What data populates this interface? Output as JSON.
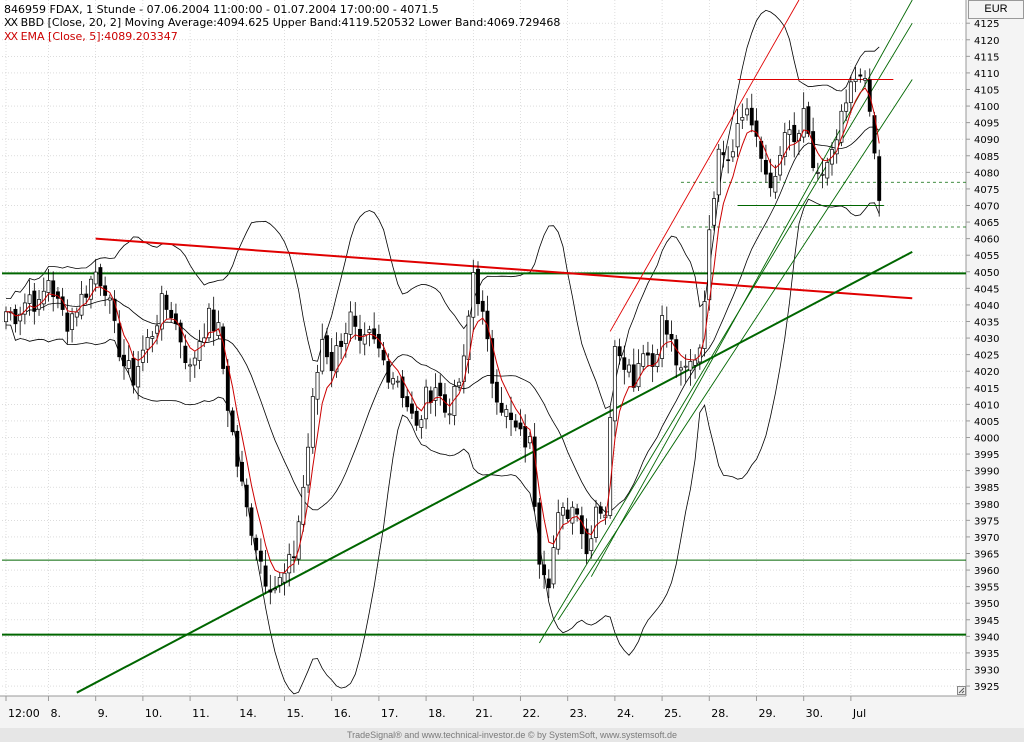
{
  "header": {
    "line1": "846959  FDAX, 1 Stunde - 07.06.2004 11:00:00 - 01.07.2004 17:00:00 - 4071.5",
    "line2": "BBD [Close, 20, 2] Moving Average:4094.625 Upper Band:4119.520532 Lower Band:4069.729468",
    "line3": "EMA [Close, 5]:4089.203347",
    "marker": "XX"
  },
  "currency": "EUR",
  "footer": "TradeSignal® and www.technical-investor.de © by  SystemSoft, www.systemsoft.de",
  "colors": {
    "background": "#ffffff",
    "grid": "#c8c8c8",
    "candle": "#000000",
    "ema": "#cc0000",
    "bands": "#000000",
    "support_green": "#006600",
    "resistance_red": "#e00000"
  },
  "chart_data": {
    "type": "candlestick",
    "title": "846959  FDAX, 1 Stunde",
    "xlabel": "",
    "ylabel": "",
    "ylim": [
      3922,
      4132
    ],
    "ytick_step": 5,
    "ytick_min": 3925,
    "ytick_max": 4125,
    "grid": true,
    "x_ticks": [
      {
        "label": "12:00",
        "bar": 0
      },
      {
        "label": "8.",
        "bar": 9
      },
      {
        "label": "9.",
        "bar": 19
      },
      {
        "label": "10.",
        "bar": 29
      },
      {
        "label": "11.",
        "bar": 39
      },
      {
        "label": "14.",
        "bar": 49
      },
      {
        "label": "15.",
        "bar": 59
      },
      {
        "label": "16.",
        "bar": 69
      },
      {
        "label": "17.",
        "bar": 79
      },
      {
        "label": "18.",
        "bar": 89
      },
      {
        "label": "21.",
        "bar": 99
      },
      {
        "label": "22.",
        "bar": 109
      },
      {
        "label": "23.",
        "bar": 119
      },
      {
        "label": "24.",
        "bar": 129
      },
      {
        "label": "25.",
        "bar": 139
      },
      {
        "label": "28.",
        "bar": 149
      },
      {
        "label": "29.",
        "bar": 159
      },
      {
        "label": "30.",
        "bar": 169
      },
      {
        "label": "Jul",
        "bar": 179
      }
    ],
    "close_path": [
      [
        0,
        4038
      ],
      [
        2,
        4037
      ],
      [
        5,
        4043
      ],
      [
        7,
        4039
      ],
      [
        9,
        4048
      ],
      [
        11,
        4040
      ],
      [
        13,
        4035
      ],
      [
        16,
        4042
      ],
      [
        19,
        4050
      ],
      [
        21,
        4046
      ],
      [
        23,
        4032
      ],
      [
        25,
        4022
      ],
      [
        27,
        4018
      ],
      [
        29,
        4026
      ],
      [
        31,
        4032
      ],
      [
        33,
        4040
      ],
      [
        35,
        4038
      ],
      [
        37,
        4030
      ],
      [
        39,
        4020
      ],
      [
        41,
        4030
      ],
      [
        43,
        4036
      ],
      [
        45,
        4032
      ],
      [
        47,
        4010
      ],
      [
        49,
        3992
      ],
      [
        51,
        3978
      ],
      [
        53,
        3968
      ],
      [
        55,
        3958
      ],
      [
        57,
        3955
      ],
      [
        59,
        3958
      ],
      [
        61,
        3965
      ],
      [
        63,
        3985
      ],
      [
        65,
        4010
      ],
      [
        67,
        4030
      ],
      [
        69,
        4022
      ],
      [
        71,
        4030
      ],
      [
        73,
        4036
      ],
      [
        75,
        4026
      ],
      [
        77,
        4030
      ],
      [
        79,
        4026
      ],
      [
        81,
        4020
      ],
      [
        83,
        4018
      ],
      [
        85,
        4010
      ],
      [
        87,
        4002
      ],
      [
        89,
        4012
      ],
      [
        91,
        4016
      ],
      [
        93,
        4008
      ],
      [
        95,
        4012
      ],
      [
        97,
        4022
      ],
      [
        99,
        4050
      ],
      [
        101,
        4036
      ],
      [
        103,
        4018
      ],
      [
        105,
        4010
      ],
      [
        107,
        4004
      ],
      [
        109,
        4000
      ],
      [
        111,
        3998
      ],
      [
        113,
        3965
      ],
      [
        115,
        3958
      ],
      [
        117,
        3975
      ],
      [
        119,
        3978
      ],
      [
        121,
        3980
      ],
      [
        123,
        3965
      ],
      [
        125,
        3980
      ],
      [
        127,
        3978
      ],
      [
        129,
        4030
      ],
      [
        131,
        4024
      ],
      [
        133,
        4018
      ],
      [
        135,
        4028
      ],
      [
        137,
        4022
      ],
      [
        139,
        4035
      ],
      [
        141,
        4028
      ],
      [
        143,
        4018
      ],
      [
        145,
        4022
      ],
      [
        147,
        4028
      ],
      [
        149,
        4060
      ],
      [
        151,
        4090
      ],
      [
        153,
        4085
      ],
      [
        155,
        4094
      ],
      [
        157,
        4100
      ],
      [
        159,
        4088
      ],
      [
        161,
        4080
      ],
      [
        163,
        4076
      ],
      [
        165,
        4092
      ],
      [
        167,
        4088
      ],
      [
        169,
        4096
      ],
      [
        171,
        4082
      ],
      [
        173,
        4078
      ],
      [
        175,
        4084
      ],
      [
        177,
        4095
      ],
      [
        179,
        4105
      ],
      [
        181,
        4112
      ],
      [
        183,
        4098
      ],
      [
        185,
        4071.5
      ]
    ],
    "series": [
      {
        "name": "EMA [Close, 5]",
        "last": 4089.203347
      },
      {
        "name": "Moving Average",
        "last": 4094.625
      },
      {
        "name": "Upper Band",
        "last": 4119.520532
      },
      {
        "name": "Lower Band",
        "last": 4069.729468
      }
    ],
    "horizontal_lines": [
      {
        "value": 4049.5,
        "style": "thick",
        "color": "#006600"
      },
      {
        "value": 3940.5,
        "style": "thick",
        "color": "#006600"
      },
      {
        "value": 3963,
        "style": "thin",
        "color": "#006600"
      }
    ],
    "dashed_levels": [
      4077,
      4063.5
    ],
    "trendlines": [
      {
        "name": "resistance",
        "color": "#e00000",
        "from": [
          19,
          4060
        ],
        "to": [
          192,
          4042
        ]
      },
      {
        "name": "support",
        "color": "#006600",
        "from": [
          15,
          3923
        ],
        "to": [
          192,
          4056
        ]
      }
    ]
  }
}
